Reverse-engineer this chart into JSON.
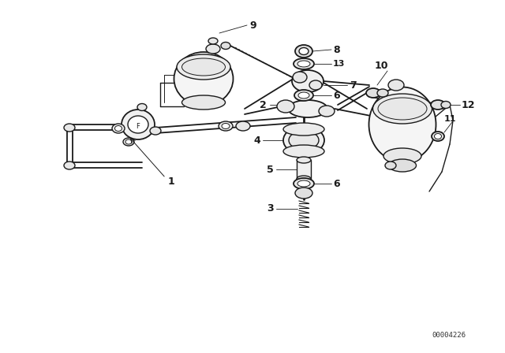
{
  "bg_color": "#ffffff",
  "border_color": "#dddddd",
  "part_number_text": "00004226",
  "figsize": [
    6.4,
    4.48
  ],
  "dpi": 100,
  "xlim": [
    0,
    640
  ],
  "ylim": [
    0,
    448
  ]
}
